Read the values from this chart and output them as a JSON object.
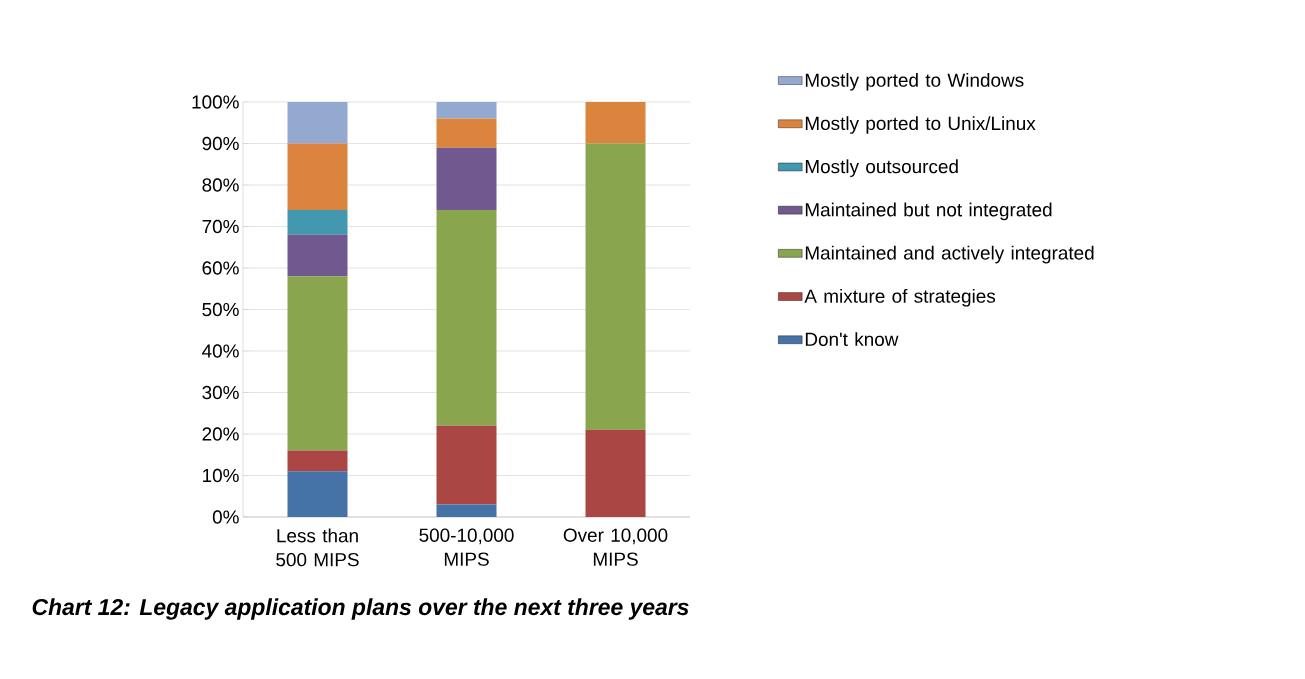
{
  "chart_data": {
    "type": "bar",
    "stacked": true,
    "title": "Chart 12: Legacy application plans over the next three years",
    "categories": [
      "Less than 500 MIPS",
      "500-10,000 MIPS",
      "Over 10,000 MIPS"
    ],
    "series": [
      {
        "name": "Don't know",
        "color": "#4572a7",
        "values": [
          11,
          3,
          0
        ]
      },
      {
        "name": "A mixture of strategies",
        "color": "#aa4643",
        "values": [
          5,
          19,
          21
        ]
      },
      {
        "name": "Maintained and actively integrated",
        "color": "#89a54e",
        "values": [
          42,
          52,
          69
        ]
      },
      {
        "name": "Maintained but not integrated",
        "color": "#71588f",
        "values": [
          10,
          15,
          0
        ]
      },
      {
        "name": "Mostly outsourced",
        "color": "#4198af",
        "values": [
          6,
          0,
          0
        ]
      },
      {
        "name": "Mostly ported to Unix/Linux",
        "color": "#db843d",
        "values": [
          16,
          7,
          10
        ]
      },
      {
        "name": "Mostly ported to Windows",
        "color": "#93a9cf",
        "values": [
          10,
          4,
          0
        ]
      }
    ],
    "ylim": [
      0,
      100
    ],
    "yticks": [
      {
        "value": 0,
        "label": "0%"
      },
      {
        "value": 10,
        "label": "10%"
      },
      {
        "value": 20,
        "label": "20%"
      },
      {
        "value": 30,
        "label": "30%"
      },
      {
        "value": 40,
        "label": "40%"
      },
      {
        "value": 50,
        "label": "50%"
      },
      {
        "value": 60,
        "label": "60%"
      },
      {
        "value": 70,
        "label": "70%"
      },
      {
        "value": 80,
        "label": "80%"
      },
      {
        "value": 90,
        "label": "90%"
      },
      {
        "value": 100,
        "label": "100%"
      }
    ],
    "grid": "y",
    "legend": "right"
  }
}
